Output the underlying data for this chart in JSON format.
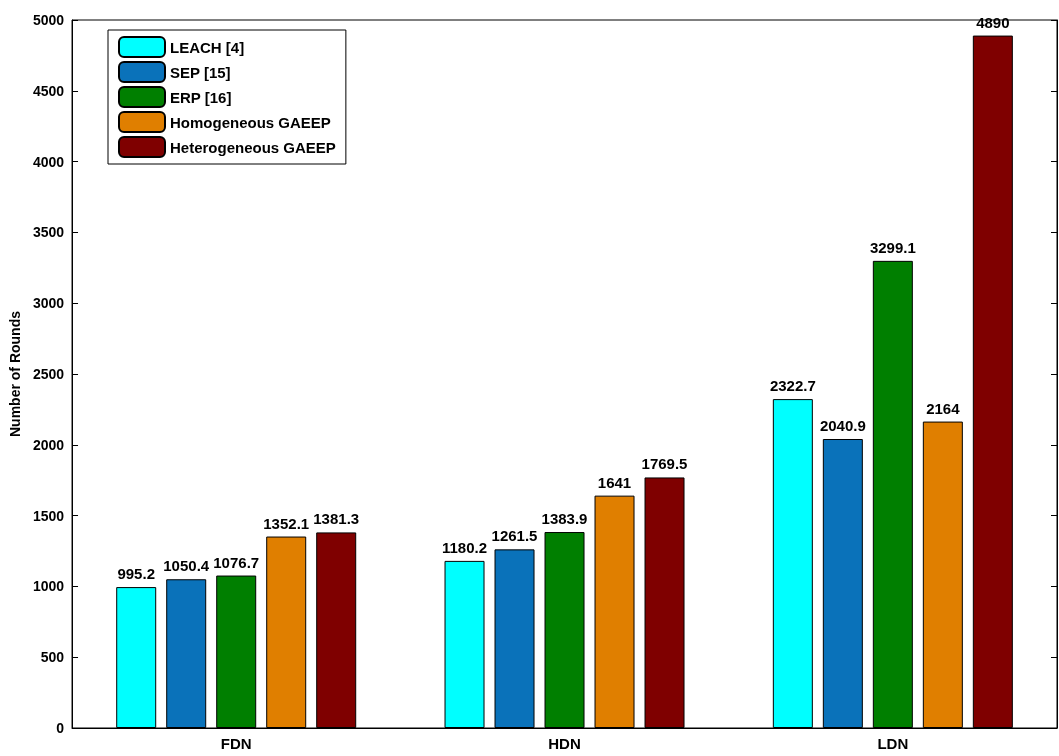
{
  "chart_data": {
    "type": "bar",
    "ylabel": "Number of Rounds",
    "categories": [
      "FDN",
      "HDN",
      "LDN"
    ],
    "series": [
      {
        "name": "LEACH [4]",
        "color": "#00ffff",
        "values": [
          995.2,
          1180.2,
          2322.7
        ]
      },
      {
        "name": "SEP [15]",
        "color": "#0a72ba",
        "values": [
          1050.4,
          1261.5,
          2040.9
        ]
      },
      {
        "name": "ERP [16]",
        "color": "#007f00",
        "values": [
          1076.7,
          1383.9,
          3299.1
        ]
      },
      {
        "name": "Homogeneous GAEEP",
        "color": "#e07f00",
        "values": [
          1352.1,
          1641,
          2164
        ]
      },
      {
        "name": "Heterogeneous GAEEP",
        "color": "#7f0000",
        "values": [
          1381.3,
          1769.5,
          4890
        ]
      }
    ],
    "ylim": [
      0,
      5000
    ],
    "yticks": [
      0,
      500,
      1000,
      1500,
      2000,
      2500,
      3000,
      3500,
      4000,
      4500,
      5000
    ],
    "data_labels": true,
    "grid": false,
    "legend": "top left"
  }
}
